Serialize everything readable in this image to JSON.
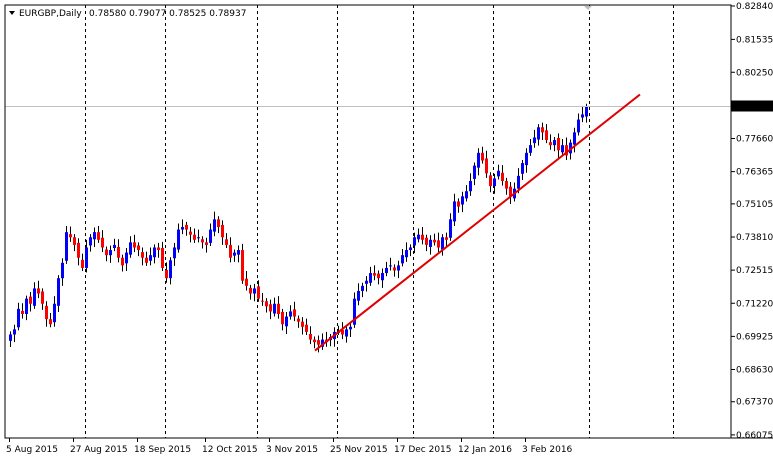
{
  "colors": {
    "background": "#ffffff",
    "frame": "#000000",
    "grid": "#000000",
    "bull": "#0000ff",
    "bear": "#ff0000",
    "wick": "#000000",
    "trendline": "#e00000",
    "price_line": "#c0c0c0",
    "price_label_bg": "#000000",
    "price_label_fg": "#ffffff"
  },
  "header": {
    "title": "EURGBP,Daily",
    "ohlc": "0.78580 0.79077 0.78525 0.78937",
    "dropdown_icon": "triangle-down-icon"
  },
  "current_price": {
    "value": 0.78937,
    "label": "0.78937"
  },
  "chart_data": {
    "type": "candlestick",
    "symbol": "EURGBP",
    "timeframe": "Daily",
    "ylim": [
      0.6607,
      0.8284
    ],
    "y_ticks": [
      "0.82840",
      "0.81535",
      "0.80250",
      "0.78937",
      "0.77660",
      "0.76365",
      "0.75105",
      "0.73810",
      "0.72515",
      "0.71220",
      "0.69925",
      "0.68630",
      "0.67370",
      "0.66075"
    ],
    "y_tick_values": [
      0.8284,
      0.81535,
      0.8025,
      0.78937,
      0.7766,
      0.76365,
      0.75105,
      0.7381,
      0.72515,
      0.7122,
      0.69925,
      0.6863,
      0.6737,
      0.66075
    ],
    "x_labels": [
      "5 Aug 2015",
      "27 Aug 2015",
      "18 Sep 2015",
      "12 Oct 2015",
      "3 Nov 2015",
      "25 Nov 2015",
      "17 Dec 2015",
      "12 Jan 2016",
      "3 Feb 2016"
    ],
    "x_label_bars": [
      0,
      16,
      32,
      49,
      65,
      81,
      97,
      113,
      129
    ],
    "vgrid_bars": [
      19,
      39,
      62,
      82,
      101,
      121,
      145,
      166
    ],
    "grid": "vertical dashed",
    "bar_count": 145,
    "closes": [
      0.7,
      0.702,
      0.71,
      0.708,
      0.714,
      0.712,
      0.718,
      0.716,
      0.712,
      0.706,
      0.704,
      0.712,
      0.722,
      0.728,
      0.74,
      0.738,
      0.735,
      0.73,
      0.726,
      0.734,
      0.738,
      0.74,
      0.737,
      0.734,
      0.731,
      0.733,
      0.735,
      0.73,
      0.727,
      0.732,
      0.736,
      0.734,
      0.733,
      0.73,
      0.728,
      0.731,
      0.734,
      0.733,
      0.726,
      0.722,
      0.729,
      0.734,
      0.741,
      0.742,
      0.741,
      0.739,
      0.737,
      0.738,
      0.736,
      0.735,
      0.741,
      0.745,
      0.742,
      0.738,
      0.735,
      0.73,
      0.732,
      0.733,
      0.721,
      0.719,
      0.716,
      0.718,
      0.714,
      0.713,
      0.711,
      0.709,
      0.712,
      0.708,
      0.704,
      0.707,
      0.709,
      0.707,
      0.705,
      0.703,
      0.701,
      0.698,
      0.697,
      0.696,
      0.698,
      0.697,
      0.699,
      0.701,
      0.701,
      0.7,
      0.702,
      0.703,
      0.714,
      0.717,
      0.719,
      0.721,
      0.724,
      0.723,
      0.722,
      0.724,
      0.726,
      0.727,
      0.725,
      0.727,
      0.731,
      0.733,
      0.734,
      0.738,
      0.739,
      0.737,
      0.735,
      0.737,
      0.736,
      0.734,
      0.738,
      0.737,
      0.745,
      0.752,
      0.75,
      0.754,
      0.756,
      0.76,
      0.766,
      0.771,
      0.768,
      0.763,
      0.758,
      0.761,
      0.764,
      0.76,
      0.757,
      0.754,
      0.757,
      0.762,
      0.767,
      0.771,
      0.774,
      0.777,
      0.781,
      0.779,
      0.776,
      0.774,
      0.776,
      0.772,
      0.774,
      0.77,
      0.775,
      0.779,
      0.784,
      0.786,
      0.789
    ]
  }
}
